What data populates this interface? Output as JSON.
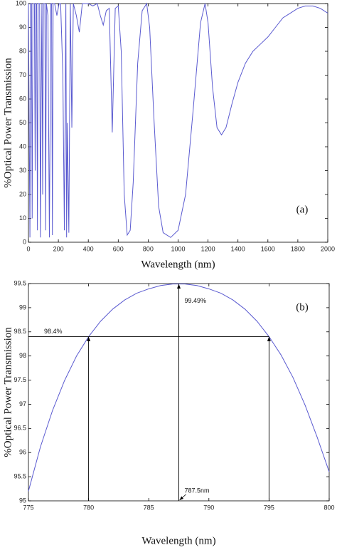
{
  "chart_data": [
    {
      "type": "line",
      "label": "(a)",
      "xlabel": "Wavelength (nm)",
      "ylabel": "%Optical Power Transmission",
      "xlim": [
        0,
        2000
      ],
      "ylim": [
        0,
        100
      ],
      "xticks": [
        0,
        200,
        400,
        600,
        800,
        1000,
        1200,
        1400,
        1600,
        1800,
        2000
      ],
      "yticks": [
        0,
        10,
        20,
        30,
        40,
        50,
        60,
        70,
        80,
        90,
        100
      ],
      "x": [
        0,
        5,
        10,
        15,
        20,
        25,
        30,
        40,
        45,
        50,
        55,
        60,
        65,
        75,
        80,
        85,
        90,
        95,
        100,
        110,
        115,
        120,
        130,
        140,
        150,
        155,
        160,
        165,
        175,
        190,
        205,
        215,
        230,
        240,
        250,
        255,
        260,
        270,
        280,
        290,
        300,
        320,
        340,
        360,
        400,
        430,
        460,
        480,
        500,
        520,
        540,
        560,
        580,
        600,
        620,
        640,
        660,
        680,
        700,
        730,
        760,
        790,
        810,
        840,
        870,
        900,
        950,
        1000,
        1050,
        1100,
        1150,
        1180,
        1200,
        1230,
        1260,
        1290,
        1320,
        1360,
        1400,
        1450,
        1500,
        1550,
        1600,
        1650,
        1700,
        1750,
        1800,
        1850,
        1900,
        1950,
        2000
      ],
      "series": [
        {
          "color": "#5a5ad0",
          "values": [
            100,
            50,
            2,
            100,
            100,
            10,
            100,
            100,
            30,
            100,
            100,
            5,
            100,
            100,
            2,
            60,
            100,
            20,
            100,
            100,
            5,
            100,
            95,
            2,
            100,
            100,
            3,
            100,
            100,
            95,
            100,
            100,
            70,
            5,
            100,
            2,
            50,
            4,
            100,
            48,
            100,
            95,
            88,
            100,
            100,
            99,
            100,
            95,
            91,
            97,
            98,
            46,
            98,
            99,
            80,
            20,
            3,
            5,
            25,
            75,
            97,
            100,
            90,
            50,
            15,
            4,
            2,
            5,
            20,
            55,
            92,
            100,
            92,
            65,
            48,
            45,
            48,
            58,
            67,
            75,
            80,
            83,
            86,
            90,
            94,
            96,
            98,
            99,
            99,
            98,
            96
          ]
        }
      ]
    },
    {
      "type": "line",
      "label": "(b)",
      "xlabel": "Wavelength (nm)",
      "ylabel": "%Optical Power Transmission",
      "xlim": [
        775,
        800
      ],
      "ylim": [
        95,
        99.5
      ],
      "xticks": [
        775,
        780,
        785,
        790,
        795,
        800
      ],
      "yticks": [
        95,
        95.5,
        96,
        96.5,
        97,
        97.5,
        98,
        98.5,
        99,
        99.5
      ],
      "x": [
        775,
        776,
        777,
        778,
        779,
        780,
        781,
        782,
        783,
        784,
        785,
        786,
        787,
        787.5,
        788,
        789,
        790,
        791,
        792,
        793,
        794,
        795,
        796,
        797,
        798,
        799,
        800
      ],
      "series": [
        {
          "color": "#5a5ad0",
          "values": [
            95.2,
            96.12,
            96.87,
            97.49,
            98.0,
            98.4,
            98.72,
            98.97,
            99.16,
            99.3,
            99.39,
            99.46,
            99.49,
            99.49,
            99.49,
            99.46,
            99.39,
            99.3,
            99.16,
            98.97,
            98.72,
            98.4,
            98.02,
            97.55,
            96.98,
            96.32,
            95.6
          ]
        }
      ],
      "annotations": [
        {
          "text": "98.4%",
          "value": 98.4
        },
        {
          "text": "99.49%",
          "value": 99.49
        },
        {
          "text": "787.5nm",
          "value": 787.5
        }
      ],
      "arrows": [
        {
          "x": 780,
          "y": 98.4
        },
        {
          "x": 787.5,
          "y": 99.49
        },
        {
          "x": 795,
          "y": 98.4
        }
      ],
      "hline": {
        "y": 98.4,
        "x": [
          775,
          795
        ]
      }
    }
  ]
}
